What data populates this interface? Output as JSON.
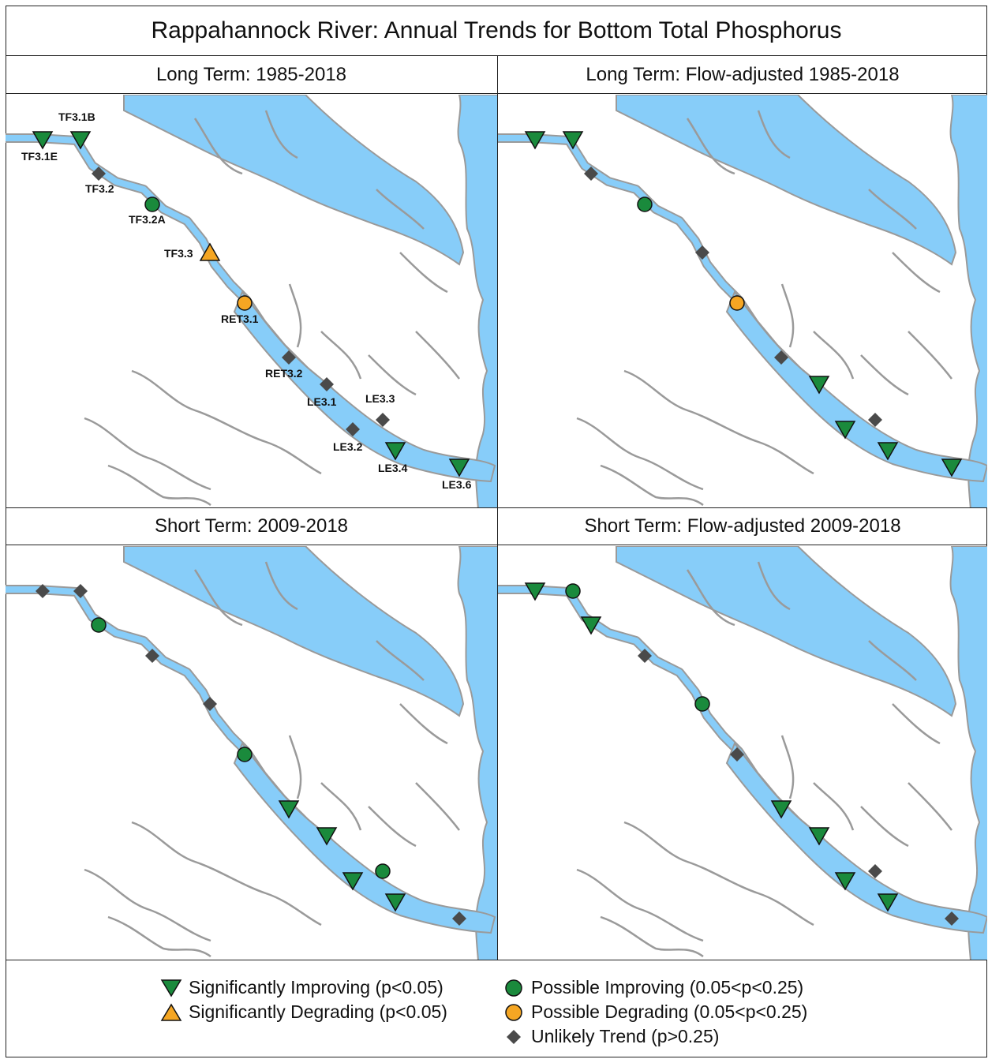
{
  "title": "Rappahannock River: Annual Trends for Bottom Total Phosphorus",
  "colors": {
    "water": "#87cdf9",
    "shore": "#9a9a9a",
    "improving_sig": "#1a8a3c",
    "improving_possible": "#1a8a3c",
    "degrading_sig": "#f5a623",
    "degrading_possible": "#f5a623",
    "unlikely": "#4a4a4a"
  },
  "panels": [
    {
      "id": "lt",
      "heading": "Long Term: 1985-2018",
      "show_labels": true,
      "stations": [
        {
          "id": "TF3.1E",
          "trend": "sig_improving"
        },
        {
          "id": "TF3.1B",
          "trend": "sig_improving"
        },
        {
          "id": "TF3.2",
          "trend": "unlikely"
        },
        {
          "id": "TF3.2A",
          "trend": "possible_improving"
        },
        {
          "id": "TF3.3",
          "trend": "sig_degrading"
        },
        {
          "id": "RET3.1",
          "trend": "possible_degrading"
        },
        {
          "id": "RET3.2",
          "trend": "unlikely"
        },
        {
          "id": "LE3.1",
          "trend": "unlikely"
        },
        {
          "id": "LE3.2",
          "trend": "unlikely"
        },
        {
          "id": "LE3.3",
          "trend": "unlikely"
        },
        {
          "id": "LE3.4",
          "trend": "sig_improving"
        },
        {
          "id": "LE3.6",
          "trend": "sig_improving"
        }
      ]
    },
    {
      "id": "ltfa",
      "heading": "Long Term: Flow-adjusted 1985-2018",
      "show_labels": false,
      "stations": [
        {
          "id": "TF3.1E",
          "trend": "sig_improving"
        },
        {
          "id": "TF3.1B",
          "trend": "sig_improving"
        },
        {
          "id": "TF3.2",
          "trend": "unlikely"
        },
        {
          "id": "TF3.2A",
          "trend": "possible_improving"
        },
        {
          "id": "TF3.3",
          "trend": "unlikely"
        },
        {
          "id": "RET3.1",
          "trend": "possible_degrading"
        },
        {
          "id": "RET3.2",
          "trend": "unlikely"
        },
        {
          "id": "LE3.1",
          "trend": "sig_improving"
        },
        {
          "id": "LE3.2",
          "trend": "sig_improving"
        },
        {
          "id": "LE3.3",
          "trend": "unlikely"
        },
        {
          "id": "LE3.4",
          "trend": "sig_improving"
        },
        {
          "id": "LE3.6",
          "trend": "sig_improving"
        }
      ]
    },
    {
      "id": "st",
      "heading": "Short Term: 2009-2018",
      "show_labels": false,
      "stations": [
        {
          "id": "TF3.1E",
          "trend": "unlikely"
        },
        {
          "id": "TF3.1B",
          "trend": "unlikely"
        },
        {
          "id": "TF3.2",
          "trend": "possible_improving"
        },
        {
          "id": "TF3.2A",
          "trend": "unlikely"
        },
        {
          "id": "TF3.3",
          "trend": "unlikely"
        },
        {
          "id": "RET3.1",
          "trend": "possible_improving"
        },
        {
          "id": "RET3.2",
          "trend": "sig_improving"
        },
        {
          "id": "LE3.1",
          "trend": "sig_improving"
        },
        {
          "id": "LE3.2",
          "trend": "sig_improving"
        },
        {
          "id": "LE3.3",
          "trend": "possible_improving"
        },
        {
          "id": "LE3.4",
          "trend": "sig_improving"
        },
        {
          "id": "LE3.6",
          "trend": "unlikely"
        }
      ]
    },
    {
      "id": "stfa",
      "heading": "Short Term: Flow-adjusted 2009-2018",
      "show_labels": false,
      "stations": [
        {
          "id": "TF3.1E",
          "trend": "sig_improving"
        },
        {
          "id": "TF3.1B",
          "trend": "possible_improving"
        },
        {
          "id": "TF3.2",
          "trend": "sig_improving"
        },
        {
          "id": "TF3.2A",
          "trend": "unlikely"
        },
        {
          "id": "TF3.3",
          "trend": "possible_improving"
        },
        {
          "id": "RET3.1",
          "trend": "unlikely"
        },
        {
          "id": "RET3.2",
          "trend": "sig_improving"
        },
        {
          "id": "LE3.1",
          "trend": "sig_improving"
        },
        {
          "id": "LE3.2",
          "trend": "sig_improving"
        },
        {
          "id": "LE3.3",
          "trend": "unlikely"
        },
        {
          "id": "LE3.4",
          "trend": "sig_improving"
        },
        {
          "id": "LE3.6",
          "trend": "unlikely"
        }
      ]
    }
  ],
  "legend": {
    "sig_improving": "Significantly Improving (p<0.05)",
    "sig_degrading": "Significantly Degrading (p<0.05)",
    "possible_improving": "Possible Improving (0.05<p<0.25)",
    "possible_degrading": "Possible Degrading (0.05<p<0.25)",
    "unlikely": "Unlikely Trend (p>0.25)"
  }
}
